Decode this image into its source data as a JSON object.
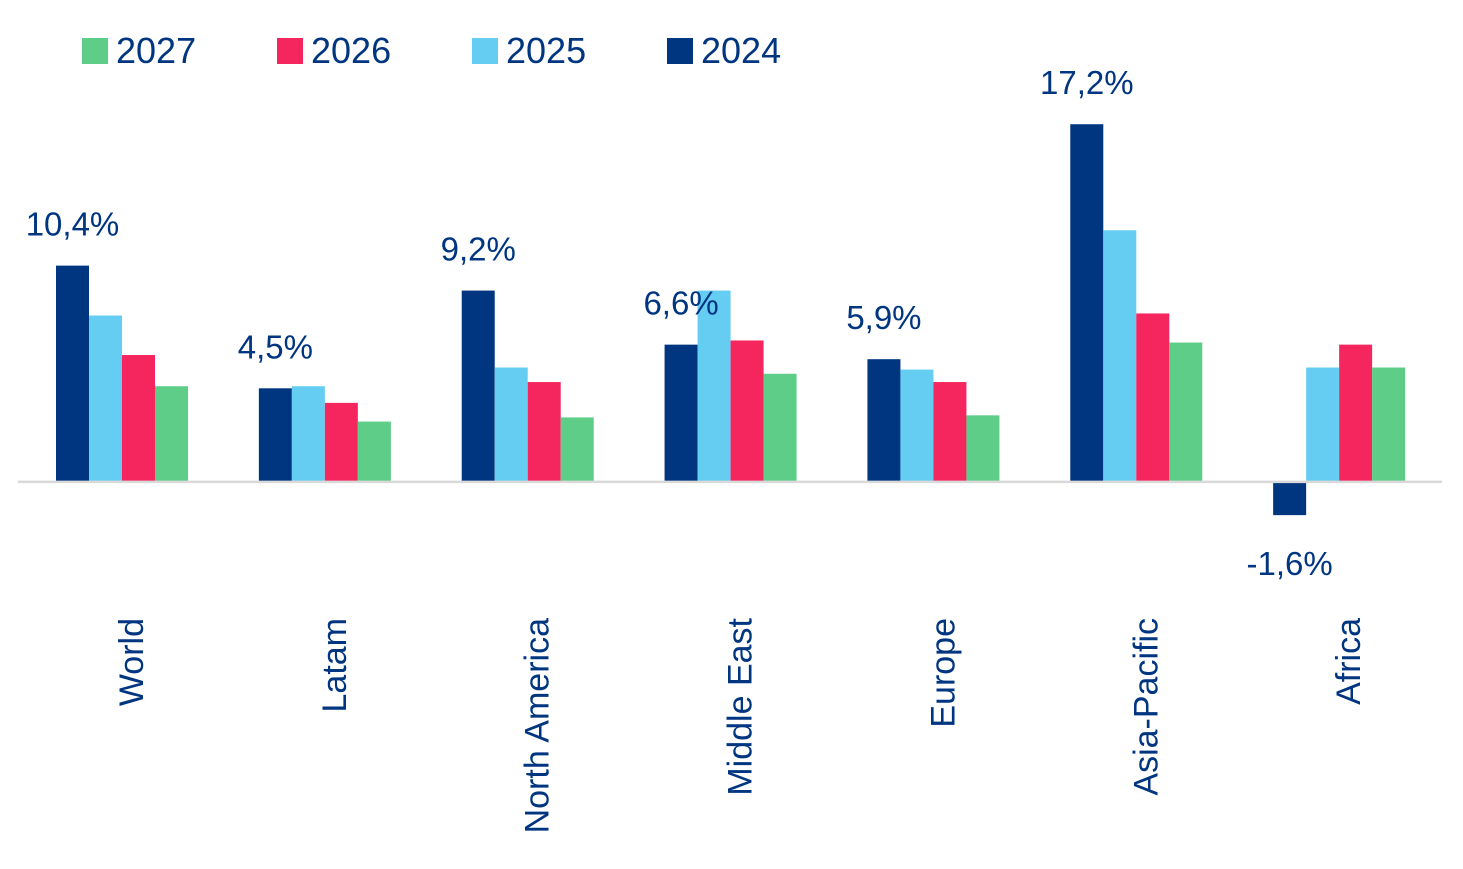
{
  "chart_data": {
    "type": "bar",
    "title": "",
    "xlabel": "",
    "ylabel": "",
    "categories": [
      "World",
      "Latam",
      "North America",
      "Middle East",
      "Europe",
      "Asia-Pacific",
      "Africa"
    ],
    "series": [
      {
        "name": "2024",
        "color": "#003580",
        "values": [
          10.4,
          4.5,
          9.2,
          6.6,
          5.9,
          17.2,
          -1.6
        ]
      },
      {
        "name": "2025",
        "color": "#66cdf2",
        "values": [
          8.0,
          4.6,
          5.5,
          9.2,
          5.4,
          12.1,
          5.5
        ]
      },
      {
        "name": "2026",
        "color": "#f5255d",
        "values": [
          6.1,
          3.8,
          4.8,
          6.8,
          4.8,
          8.1,
          6.6
        ]
      },
      {
        "name": "2027",
        "color": "#5ecd88",
        "values": [
          4.6,
          2.9,
          3.1,
          5.2,
          3.2,
          6.7,
          5.5
        ]
      }
    ],
    "data_labels": {
      "series": "2024",
      "texts": [
        "10,4%",
        "4,5%",
        "9,2%",
        "6,6%",
        "5,9%",
        "17,2%",
        "-1,6%"
      ]
    },
    "legend": {
      "placement": "top-left",
      "order": [
        "2027",
        "2026",
        "2025",
        "2024"
      ]
    },
    "ylim": [
      -5.2,
      20
    ],
    "axis_line_color": "#d9d9d9",
    "grid": false,
    "yaxis_visible": false
  }
}
